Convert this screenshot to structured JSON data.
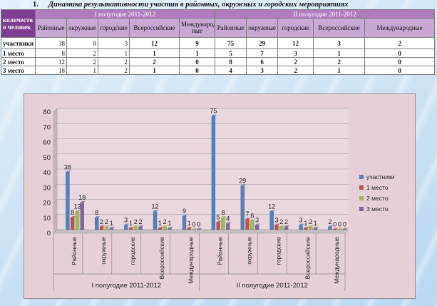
{
  "heading": {
    "number": "1.",
    "text": "Динамика результативности участия в районных, окружных и городских мероприятиях"
  },
  "table": {
    "corner_label": "количеств о человек",
    "half1_label": "I полугодие 2011-2012",
    "half2_label": "II полугодие 2011-2012",
    "columns": [
      "Районные",
      "окружные",
      "городские",
      "Всероссийские",
      "Международ ные",
      "Районные",
      "окружные",
      "городские",
      "Всероссийские",
      "Международные"
    ],
    "rows": [
      {
        "label": "участники",
        "values": [
          "38",
          "8",
          "3",
          "12",
          "9",
          "75",
          "29",
          "12",
          "3",
          "2"
        ]
      },
      {
        "label": "1 место",
        "values": [
          "8",
          "2",
          "1",
          "1",
          "1",
          "5",
          "7",
          "3",
          "1",
          "0"
        ]
      },
      {
        "label": "2 место",
        "values": [
          "12",
          "2",
          "2",
          "2",
          "0",
          "8",
          "6",
          "2",
          "2",
          "0"
        ]
      },
      {
        "label": "3 место",
        "values": [
          "18",
          "1",
          "2",
          "1",
          "0",
          "4",
          "3",
          "2",
          "1",
          "0"
        ]
      }
    ]
  },
  "chart_data": {
    "type": "bar",
    "groups": [
      "I полугодие 2011-2012",
      "II полугодие 2011-2012"
    ],
    "categories": [
      "Районные",
      "окружные",
      "городские",
      "Всероссийские",
      "Международные",
      "Районные",
      "окружные",
      "городские",
      "Всероссийские",
      "Международные"
    ],
    "series": [
      {
        "name": "участники",
        "color": "#4f81bd",
        "values": [
          38,
          8,
          3,
          12,
          9,
          75,
          29,
          12,
          3,
          2
        ]
      },
      {
        "name": "1 место",
        "color": "#c0504d",
        "values": [
          8,
          2,
          1,
          1,
          1,
          5,
          7,
          3,
          1,
          0
        ]
      },
      {
        "name": "2 место",
        "color": "#9bbb59",
        "values": [
          12,
          2,
          2,
          2,
          0,
          8,
          6,
          2,
          2,
          0
        ]
      },
      {
        "name": "3 место",
        "color": "#8064a2",
        "values": [
          18,
          1,
          2,
          1,
          0,
          4,
          3,
          2,
          1,
          0
        ]
      }
    ],
    "ylim": [
      0,
      80
    ],
    "yticks": [
      0,
      10,
      20,
      30,
      40,
      50,
      60,
      70,
      80
    ],
    "grid": true,
    "legend": "right"
  }
}
